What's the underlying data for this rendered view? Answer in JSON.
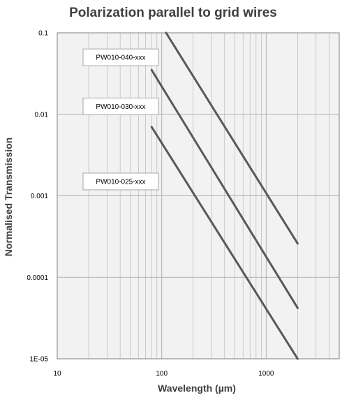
{
  "chart_data": {
    "type": "line",
    "title": "Polarization parallel to grid wires",
    "xlabel": "Wavelength (µm)",
    "ylabel": "Normalised Transmission",
    "x_scale": "log",
    "y_scale": "log",
    "xlim": [
      10,
      5000
    ],
    "ylim": [
      1e-05,
      0.1
    ],
    "x_tick_labels": [
      "10",
      "100",
      "1000"
    ],
    "y_tick_labels": [
      "0.1",
      "0.01",
      "0.001",
      "0.0001",
      "1E-05"
    ],
    "grid": true,
    "colors": {
      "plot_bg": "#f2f2f2",
      "grid": "#b0b0b0",
      "line": "#595959"
    },
    "series": [
      {
        "name": "PW010-040-xxx",
        "x": [
          110,
          2000
        ],
        "y": [
          0.1,
          0.00026
        ]
      },
      {
        "name": "PW010-030-xxx",
        "x": [
          80,
          2000
        ],
        "y": [
          0.035,
          4.2e-05
        ]
      },
      {
        "name": "PW010-025-xxx",
        "x": [
          80,
          2000
        ],
        "y": [
          0.007,
          1e-05
        ]
      }
    ]
  }
}
